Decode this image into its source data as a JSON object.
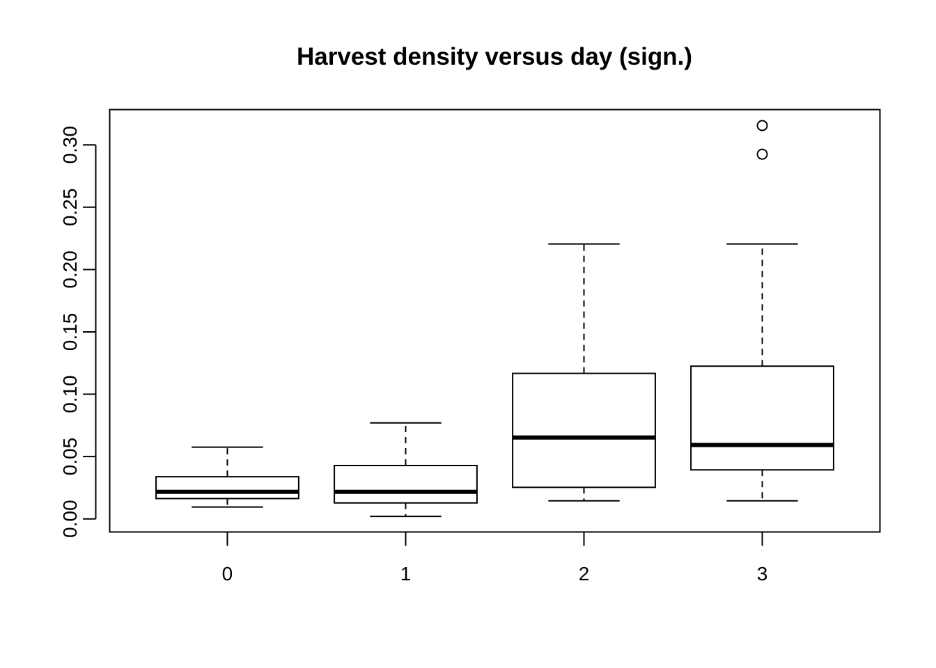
{
  "chart_data": {
    "type": "boxplot",
    "title": "Harvest density versus day (sign.)",
    "xlabel": "",
    "ylabel": "",
    "categories": [
      "0",
      "1",
      "2",
      "3"
    ],
    "ylim": [
      -0.0105,
      0.3283
    ],
    "y_ticks": [
      0.0,
      0.05,
      0.1,
      0.15,
      0.2,
      0.25,
      0.3
    ],
    "y_tick_labels": [
      "0.00",
      "0.05",
      "0.10",
      "0.15",
      "0.20",
      "0.25",
      "0.30"
    ],
    "grid": false,
    "legend": "none",
    "boxes": [
      {
        "category": "0",
        "whisker_low": 0.0095,
        "q1": 0.0163,
        "median": 0.0217,
        "q3": 0.0338,
        "whisker_high": 0.0575,
        "outliers": []
      },
      {
        "category": "1",
        "whisker_low": 0.002,
        "q1": 0.0128,
        "median": 0.0217,
        "q3": 0.0428,
        "whisker_high": 0.077,
        "outliers": []
      },
      {
        "category": "2",
        "whisker_low": 0.0145,
        "q1": 0.0253,
        "median": 0.0653,
        "q3": 0.1167,
        "whisker_high": 0.2205,
        "outliers": []
      },
      {
        "category": "3",
        "whisker_low": 0.0145,
        "q1": 0.0393,
        "median": 0.0593,
        "q3": 0.1225,
        "whisker_high": 0.2205,
        "outliers": [
          0.2925,
          0.3155
        ]
      }
    ]
  }
}
